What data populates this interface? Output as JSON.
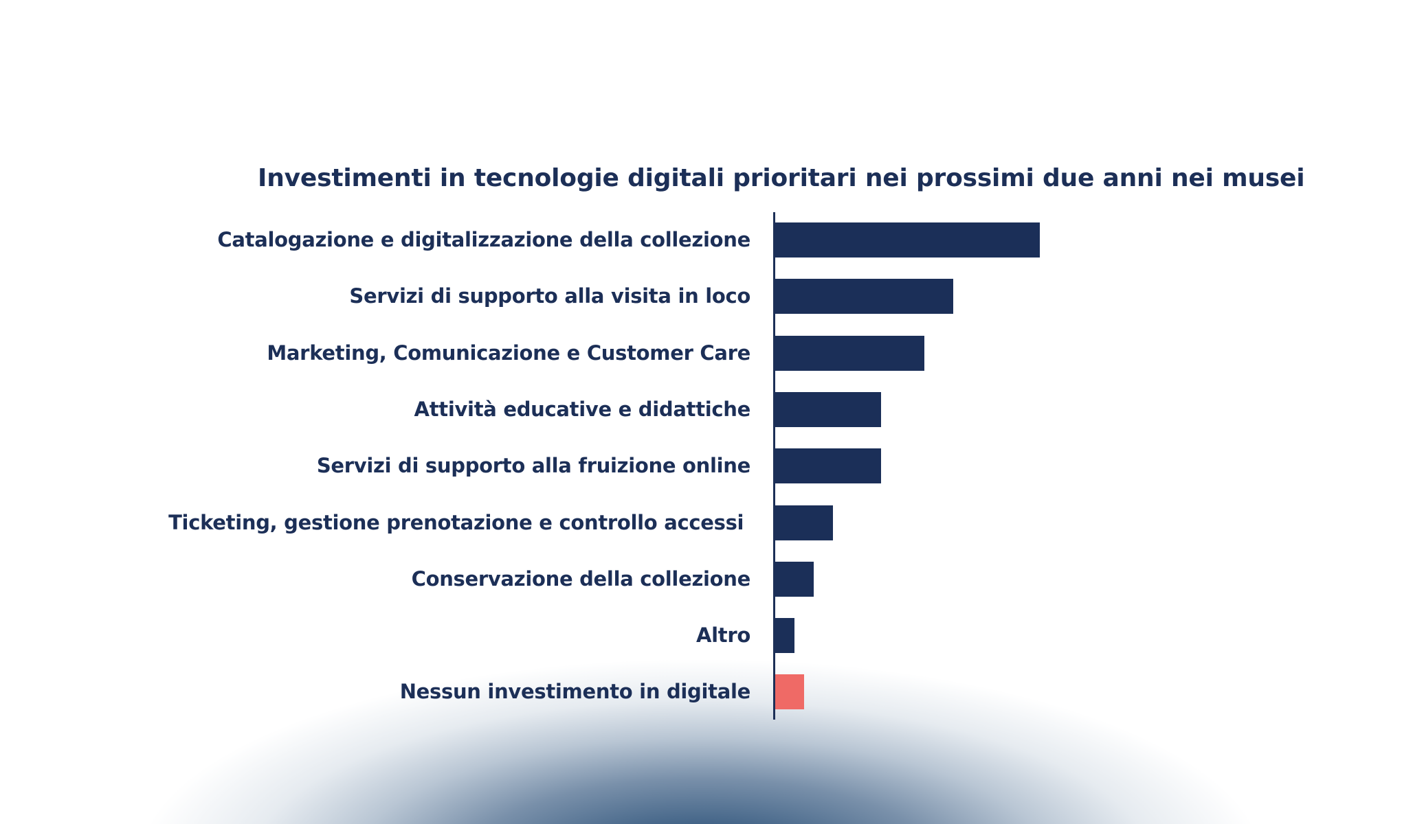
{
  "title": "Investimenti in tecnologie digitali prioritari nei prossimi due anni nei musei",
  "colors": {
    "text": "#1c2f57",
    "bar": "#1b2f58",
    "bar_highlight": "#ef6a66",
    "glow": "#2c4f73"
  },
  "chart_data": {
    "type": "bar",
    "orientation": "horizontal",
    "title": "Investimenti in tecnologie digitali prioritari nei prossimi due anni nei musei",
    "xlabel": "",
    "ylabel": "",
    "unit": "% (estimated, no axis ticks shown)",
    "categories": [
      "Catalogazione e digitalizzazione della collezione",
      "Servizi di supporto alla visita in loco",
      "Marketing, Comunicazione e Customer Care",
      "Attività educative e didattiche",
      "Servizi di supporto alla fruizione online",
      "Ticketing, gestione prenotazione e controllo accessi ",
      "Conservazione della collezione",
      "Altro",
      "Nessun investimento in digitale"
    ],
    "values": [
      55,
      37,
      31,
      22,
      22,
      12,
      8,
      4,
      6
    ],
    "highlight_index": 8,
    "grid": false,
    "legend": null,
    "xlim": [
      0,
      100
    ]
  }
}
